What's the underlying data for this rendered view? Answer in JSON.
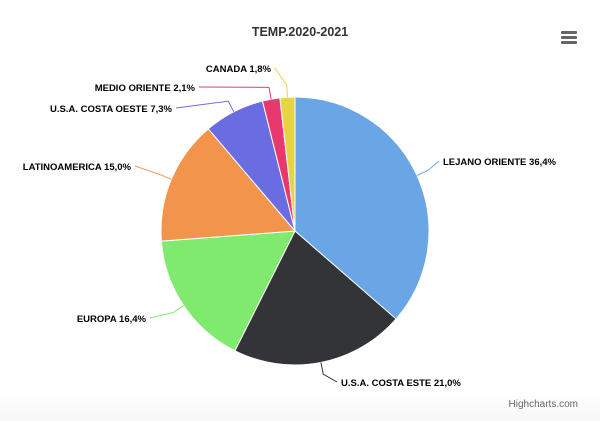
{
  "chart_data": {
    "type": "pie",
    "title": "TEMP.2020-2021",
    "slices": [
      {
        "name": "LEJANO ORIENTE",
        "value": 36.4,
        "label": "LEJANO ORIENTE 36,4%",
        "color": "#6aa6e6"
      },
      {
        "name": "U.S.A. COSTA ESTE",
        "value": 21.0,
        "label": "U.S.A. COSTA ESTE 21,0%",
        "color": "#333438"
      },
      {
        "name": "EUROPA",
        "value": 16.4,
        "label": "EUROPA 16,4%",
        "color": "#80ea6e"
      },
      {
        "name": "LATINOAMERICA",
        "value": 15.0,
        "label": "LATINOAMERICA 15,0%",
        "color": "#f2944c"
      },
      {
        "name": "U.S.A. COSTA OESTE",
        "value": 7.3,
        "label": "U.S.A. COSTA OESTE 7,3%",
        "color": "#6a6ce2"
      },
      {
        "name": "MEDIO ORIENTE",
        "value": 2.1,
        "label": "MEDIO ORIENTE 2,1%",
        "color": "#e9386d"
      },
      {
        "name": "CANADA",
        "value": 1.8,
        "label": "CANADA 1,8%",
        "color": "#e6d444"
      }
    ],
    "legend": false
  },
  "menu": {
    "icon": "hamburger-menu-icon"
  },
  "credits": "Highcharts.com"
}
